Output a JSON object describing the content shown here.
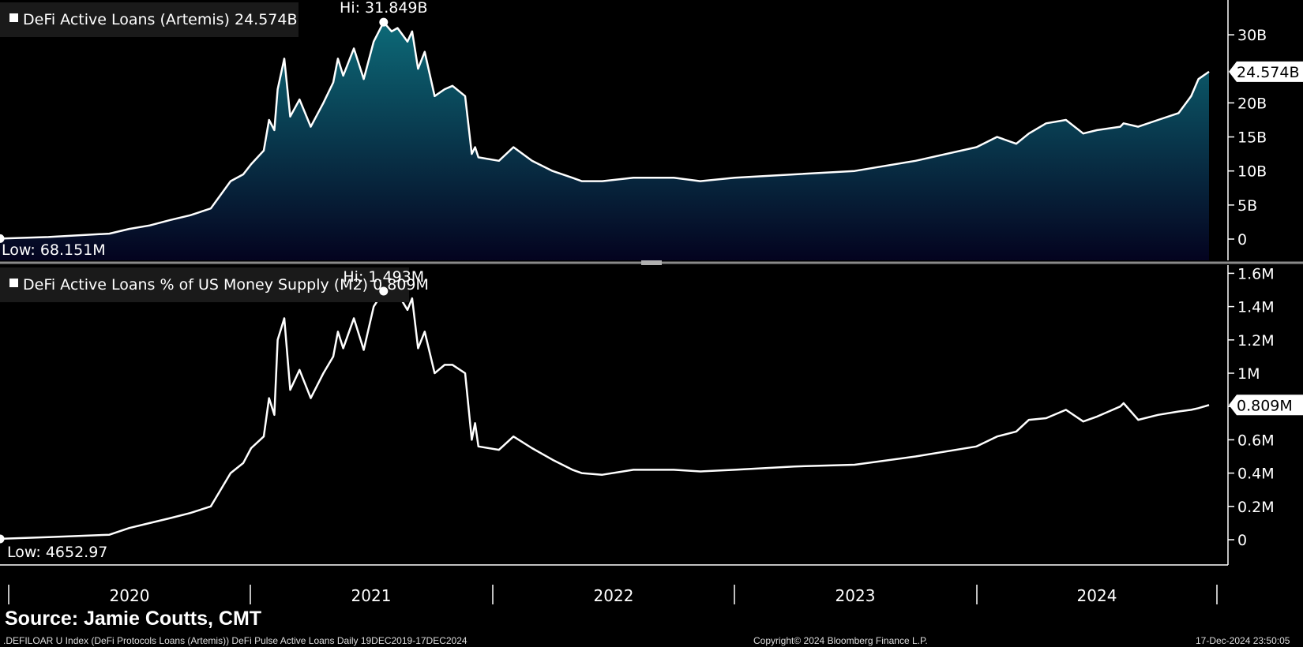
{
  "source": "Source: Jamie Coutts, CMT",
  "footer": {
    "index_desc": ".DEFILOAR U Index (DeFi Protocols Loans (Artemis)) DeFi Pulse Active Loans  Daily 19DEC2019-17DEC2024",
    "copyright": "Copyright© 2024 Bloomberg Finance L.P.",
    "timestamp": "17-Dec-2024 23:50:05"
  },
  "colors": {
    "background": "#000000",
    "line": "#ffffff",
    "area_top": "#0d6a78",
    "area_bottom": "#04031f",
    "legend_bg": "#1a1a1a",
    "divider": "#8a8a8a"
  },
  "x_axis": {
    "years": [
      "2020",
      "2021",
      "2022",
      "2023",
      "2024"
    ]
  },
  "chart_data": [
    {
      "type": "area",
      "legend": "DeFi Active Loans (Artemis) 24.574B",
      "high_label": "Hi: 31.849B",
      "low_label": "Low: 68.151M",
      "last_value_label": "24.574B",
      "y_ticks": [
        "0",
        "5B",
        "10B",
        "15B",
        "20B",
        "30B"
      ],
      "ylim": [
        0,
        35
      ],
      "series": [
        {
          "x": [
            "2019-12-19",
            "2020-03-01",
            "2020-06-01",
            "2020-07-01",
            "2020-08-01",
            "2020-09-01",
            "2020-10-01",
            "2020-11-01",
            "2020-12-01",
            "2020-12-20",
            "2021-01-01",
            "2021-01-20",
            "2021-01-28",
            "2021-02-05",
            "2021-02-10",
            "2021-02-20",
            "2021-03-01",
            "2021-03-15",
            "2021-04-01",
            "2021-04-20",
            "2021-05-05",
            "2021-05-12",
            "2021-05-20",
            "2021-06-05",
            "2021-06-20",
            "2021-07-05",
            "2021-07-20",
            "2021-08-01",
            "2021-08-10",
            "2021-08-25",
            "2021-09-01",
            "2021-09-10",
            "2021-09-20",
            "2021-10-05",
            "2021-10-20",
            "2021-11-01",
            "2021-11-20",
            "2021-11-30",
            "2021-12-05",
            "2021-12-10",
            "2022-01-10",
            "2022-02-01",
            "2022-03-01",
            "2022-04-01",
            "2022-05-01",
            "2022-05-15",
            "2022-06-15",
            "2022-08-01",
            "2022-10-01",
            "2022-11-10",
            "2023-01-01",
            "2023-04-01",
            "2023-07-01",
            "2023-10-01",
            "2024-01-01",
            "2024-02-01",
            "2024-03-01",
            "2024-03-20",
            "2024-04-15",
            "2024-05-15",
            "2024-06-10",
            "2024-07-01",
            "2024-08-05",
            "2024-08-10",
            "2024-09-01",
            "2024-10-01",
            "2024-11-01",
            "2024-11-20",
            "2024-12-01",
            "2024-12-17"
          ],
          "values": [
            0.07,
            0.3,
            0.8,
            1.5,
            2.0,
            2.8,
            3.5,
            4.5,
            8.5,
            9.5,
            11.0,
            13.0,
            17.5,
            16.0,
            22.0,
            26.5,
            18.0,
            20.5,
            16.5,
            20.0,
            23.0,
            26.5,
            24.0,
            28.0,
            23.5,
            29.0,
            31.849,
            30.5,
            31.0,
            29.0,
            30.5,
            25.0,
            27.5,
            21.0,
            22.0,
            22.5,
            21.0,
            12.5,
            13.5,
            12.0,
            11.5,
            13.5,
            11.5,
            10.0,
            9.0,
            8.5,
            8.5,
            9.0,
            9.0,
            8.5,
            9.0,
            9.5,
            10.0,
            11.5,
            13.5,
            15.0,
            14.0,
            15.5,
            17.0,
            17.5,
            15.5,
            16.0,
            16.5,
            17.0,
            16.5,
            17.5,
            18.5,
            21.0,
            23.5,
            24.574
          ]
        }
      ]
    },
    {
      "type": "line",
      "legend": "DeFi Active Loans % of US Money Supply (M2) 0.809M",
      "high_label": "Hi: 1.493M",
      "low_label": "Low: 4652.97",
      "last_value_label": "0.809M",
      "y_ticks": [
        "0",
        "0.2M",
        "0.4M",
        "0.6M",
        "0.8M",
        "1M",
        "1.2M",
        "1.4M",
        "1.6M"
      ],
      "ylim": [
        0,
        1.6
      ],
      "series": [
        {
          "x": [
            "2019-12-19",
            "2020-03-01",
            "2020-06-01",
            "2020-07-01",
            "2020-08-01",
            "2020-09-01",
            "2020-10-01",
            "2020-11-01",
            "2020-12-01",
            "2020-12-20",
            "2021-01-01",
            "2021-01-20",
            "2021-01-28",
            "2021-02-05",
            "2021-02-10",
            "2021-02-20",
            "2021-03-01",
            "2021-03-15",
            "2021-04-01",
            "2021-04-20",
            "2021-05-05",
            "2021-05-12",
            "2021-05-20",
            "2021-06-05",
            "2021-06-20",
            "2021-07-05",
            "2021-07-20",
            "2021-08-01",
            "2021-08-10",
            "2021-08-25",
            "2021-09-01",
            "2021-09-10",
            "2021-09-20",
            "2021-10-05",
            "2021-10-20",
            "2021-11-01",
            "2021-11-20",
            "2021-11-30",
            "2021-12-05",
            "2021-12-10",
            "2022-01-10",
            "2022-02-01",
            "2022-03-01",
            "2022-04-01",
            "2022-05-01",
            "2022-05-15",
            "2022-06-15",
            "2022-08-01",
            "2022-10-01",
            "2022-11-10",
            "2023-01-01",
            "2023-04-01",
            "2023-07-01",
            "2023-10-01",
            "2024-01-01",
            "2024-02-01",
            "2024-03-01",
            "2024-03-20",
            "2024-04-15",
            "2024-05-15",
            "2024-06-10",
            "2024-07-01",
            "2024-08-05",
            "2024-08-10",
            "2024-09-01",
            "2024-10-01",
            "2024-11-01",
            "2024-11-20",
            "2024-12-01",
            "2024-12-17"
          ],
          "values": [
            0.005,
            0.015,
            0.03,
            0.07,
            0.1,
            0.13,
            0.16,
            0.2,
            0.4,
            0.46,
            0.55,
            0.62,
            0.85,
            0.75,
            1.2,
            1.33,
            0.9,
            1.02,
            0.85,
            1.0,
            1.1,
            1.25,
            1.15,
            1.33,
            1.14,
            1.4,
            1.493,
            1.45,
            1.48,
            1.38,
            1.45,
            1.15,
            1.25,
            1.0,
            1.05,
            1.05,
            1.0,
            0.6,
            0.7,
            0.56,
            0.54,
            0.62,
            0.55,
            0.48,
            0.42,
            0.4,
            0.39,
            0.42,
            0.42,
            0.41,
            0.42,
            0.44,
            0.45,
            0.5,
            0.56,
            0.62,
            0.65,
            0.72,
            0.73,
            0.78,
            0.71,
            0.74,
            0.8,
            0.82,
            0.72,
            0.75,
            0.77,
            0.78,
            0.79,
            0.809
          ]
        }
      ]
    }
  ]
}
